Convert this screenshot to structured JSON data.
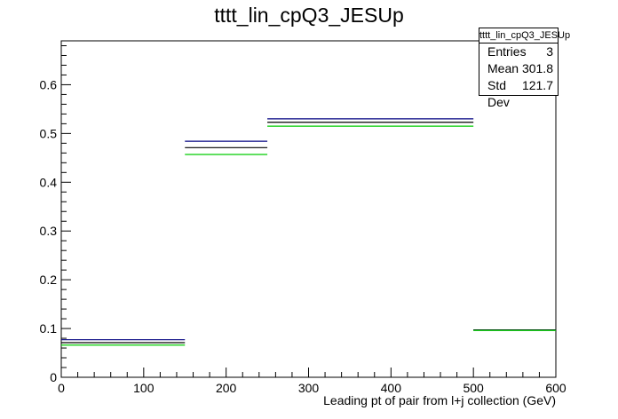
{
  "chart_data": {
    "type": "histogram-step",
    "title": "tttt_lin_cpQ3_JESUp",
    "xlabel": "Leading pt of pair from l+j collection (GeV)",
    "ylabel": "",
    "xlim": [
      0,
      600
    ],
    "ylim": [
      0,
      0.69
    ],
    "x_ticks": [
      0,
      100,
      200,
      300,
      400,
      500,
      600
    ],
    "y_ticks": [
      0,
      0.1,
      0.2,
      0.3,
      0.4,
      0.5,
      0.6
    ],
    "x_tick_labels": [
      "0",
      "100",
      "200",
      "300",
      "400",
      "500",
      "600"
    ],
    "y_tick_labels": [
      "0",
      "0.1",
      "0.2",
      "0.3",
      "0.4",
      "0.5",
      "0.6"
    ],
    "bin_edges": [
      0,
      150,
      250,
      500,
      600
    ],
    "series": [
      {
        "color": "#000080",
        "values": [
          0.077,
          0.484,
          0.53,
          0.097
        ]
      },
      {
        "color": "#000000",
        "values": [
          0.071,
          0.471,
          0.523,
          0.097
        ]
      },
      {
        "color": "#00cc00",
        "values": [
          0.066,
          0.457,
          0.515,
          0.096
        ]
      }
    ],
    "grid": false
  },
  "stats_box": {
    "title": "tttt_lin_cpQ3_JESUp",
    "rows": [
      {
        "label": "Entries",
        "value": "3"
      },
      {
        "label": "Mean",
        "value": "301.8"
      },
      {
        "label": "Std Dev",
        "value": "121.7"
      }
    ]
  }
}
